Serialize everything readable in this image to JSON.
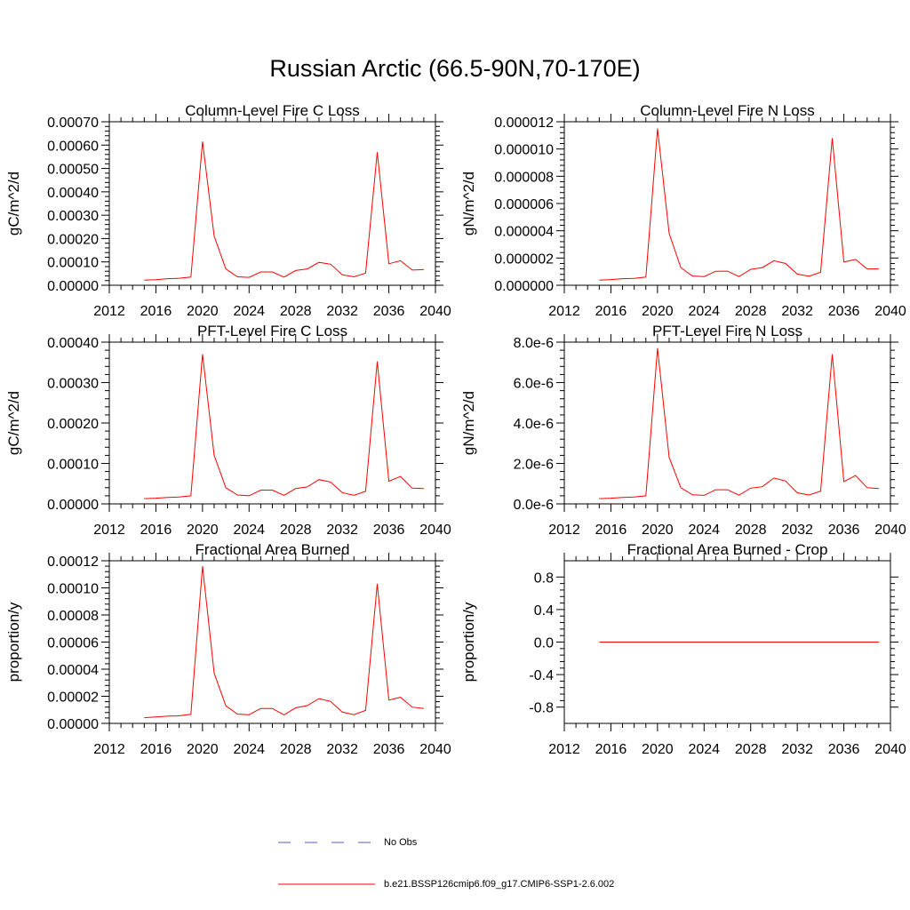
{
  "title": "Russian Arctic (66.5-90N,70-170E)",
  "colors": {
    "model": "#ff0000",
    "obs": "#4a5ad8",
    "axis": "#000000"
  },
  "legend": {
    "obs_label": "No Obs",
    "model_label": "b.e21.BSSP126cmip6.f09_g17.CMIP6-SSP1-2.6.002"
  },
  "chart_data": [
    {
      "type": "line",
      "title": "Column-Level Fire C Loss",
      "ylabel": "gC/m^2/d",
      "xlim": [
        2012,
        2040
      ],
      "xticks": [
        "2012",
        "2016",
        "2020",
        "2024",
        "2028",
        "2032",
        "2036",
        "2040"
      ],
      "ylim": [
        0,
        0.0007
      ],
      "yticks": [
        "0.00000",
        "0.00010",
        "0.00020",
        "0.00030",
        "0.00040",
        "0.00050",
        "0.00060",
        "0.00070"
      ],
      "x": [
        2015,
        2016,
        2017,
        2018,
        2019,
        2020,
        2021,
        2022,
        2023,
        2024,
        2025,
        2026,
        2027,
        2028,
        2029,
        2030,
        2031,
        2032,
        2033,
        2034,
        2035,
        2036,
        2037,
        2038,
        2039
      ],
      "series": [
        {
          "values": [
            2.2e-05,
            2.4e-05,
            2.8e-05,
            3e-05,
            3.5e-05,
            0.000615,
            0.00021,
            7e-05,
            3.6e-05,
            3.4e-05,
            5.7e-05,
            5.7e-05,
            3.5e-05,
            6.3e-05,
            7e-05,
            9.8e-05,
            9e-05,
            4.5e-05,
            3.6e-05,
            5.2e-05,
            0.00057,
            9.2e-05,
            0.000105,
            6.5e-05,
            6.7e-05
          ]
        }
      ]
    },
    {
      "type": "line",
      "title": "Column-Level Fire N Loss",
      "ylabel": "gN/m^2/d",
      "xlim": [
        2012,
        2040
      ],
      "xticks": [
        "2012",
        "2016",
        "2020",
        "2024",
        "2028",
        "2032",
        "2036",
        "2040"
      ],
      "ylim": [
        0,
        1.2e-05
      ],
      "yticks": [
        "0.000000",
        "0.000002",
        "0.000004",
        "0.000006",
        "0.000008",
        "0.000010",
        "0.000012"
      ],
      "x": [
        2015,
        2016,
        2017,
        2018,
        2019,
        2020,
        2021,
        2022,
        2023,
        2024,
        2025,
        2026,
        2027,
        2028,
        2029,
        2030,
        2031,
        2032,
        2033,
        2034,
        2035,
        2036,
        2037,
        2038,
        2039
      ],
      "series": [
        {
          "values": [
            3.8e-07,
            4.2e-07,
            4.8e-07,
            5e-07,
            6e-07,
            1.15e-05,
            3.8e-06,
            1.3e-06,
            6.8e-07,
            6.4e-07,
            1.03e-06,
            1.04e-06,
            6.4e-07,
            1.17e-06,
            1.3e-06,
            1.8e-06,
            1.6e-06,
            8.2e-07,
            6.6e-07,
            9.5e-07,
            1.08e-05,
            1.7e-06,
            1.9e-06,
            1.2e-06,
            1.2e-06
          ]
        }
      ]
    },
    {
      "type": "line",
      "title": "PFT-Level Fire C Loss",
      "ylabel": "gC/m^2/d",
      "xlim": [
        2012,
        2040
      ],
      "xticks": [
        "2012",
        "2016",
        "2020",
        "2024",
        "2028",
        "2032",
        "2036",
        "2040"
      ],
      "ylim": [
        0,
        0.0004
      ],
      "yticks": [
        "0.00000",
        "0.00010",
        "0.00020",
        "0.00030",
        "0.00040"
      ],
      "x": [
        2015,
        2016,
        2017,
        2018,
        2019,
        2020,
        2021,
        2022,
        2023,
        2024,
        2025,
        2026,
        2027,
        2028,
        2029,
        2030,
        2031,
        2032,
        2033,
        2034,
        2035,
        2036,
        2037,
        2038,
        2039
      ],
      "series": [
        {
          "values": [
            1.3e-05,
            1.4e-05,
            1.6e-05,
            1.7e-05,
            2e-05,
            0.00037,
            0.00012,
            4e-05,
            2.2e-05,
            2e-05,
            3.4e-05,
            3.4e-05,
            2.1e-05,
            3.8e-05,
            4.2e-05,
            6e-05,
            5.4e-05,
            2.8e-05,
            2.1e-05,
            3.1e-05,
            0.000352,
            5.6e-05,
            6.8e-05,
            3.9e-05,
            3.8e-05
          ]
        }
      ]
    },
    {
      "type": "line",
      "title": "PFT-Level Fire N Loss",
      "ylabel": "gN/m^2/d",
      "xlim": [
        2012,
        2040
      ],
      "xticks": [
        "2012",
        "2016",
        "2020",
        "2024",
        "2028",
        "2032",
        "2036",
        "2040"
      ],
      "ylim": [
        0,
        8e-06
      ],
      "yticks": [
        "0.0e-6",
        "2.0e-6",
        "4.0e-6",
        "6.0e-6",
        "8.0e-6"
      ],
      "x": [
        2015,
        2016,
        2017,
        2018,
        2019,
        2020,
        2021,
        2022,
        2023,
        2024,
        2025,
        2026,
        2027,
        2028,
        2029,
        2030,
        2031,
        2032,
        2033,
        2034,
        2035,
        2036,
        2037,
        2038,
        2039
      ],
      "series": [
        {
          "values": [
            2.6e-07,
            2.8e-07,
            3.2e-07,
            3.4e-07,
            4e-07,
            7.7e-06,
            2.3e-06,
            8e-07,
            4.5e-07,
            4.2e-07,
            7e-07,
            7e-07,
            4.3e-07,
            7.8e-07,
            8.5e-07,
            1.28e-06,
            1.13e-06,
            5.5e-07,
            4.4e-07,
            6.3e-07,
            7.4e-06,
            1.1e-06,
            1.4e-06,
            8e-07,
            7.6e-07
          ]
        }
      ]
    },
    {
      "type": "line",
      "title": "Fractional Area Burned",
      "ylabel": "proportion/y",
      "xlim": [
        2012,
        2040
      ],
      "xticks": [
        "2012",
        "2016",
        "2020",
        "2024",
        "2028",
        "2032",
        "2036",
        "2040"
      ],
      "ylim": [
        0,
        0.00012
      ],
      "yticks": [
        "0.00000",
        "0.00002",
        "0.00004",
        "0.00006",
        "0.00008",
        "0.00010",
        "0.00012"
      ],
      "x": [
        2015,
        2016,
        2017,
        2018,
        2019,
        2020,
        2021,
        2022,
        2023,
        2024,
        2025,
        2026,
        2027,
        2028,
        2029,
        2030,
        2031,
        2032,
        2033,
        2034,
        2035,
        2036,
        2037,
        2038,
        2039
      ],
      "series": [
        {
          "values": [
            4.2e-06,
            4.7e-06,
            5.3e-06,
            5.6e-06,
            6.7e-06,
            0.000116,
            3.7e-05,
            1.3e-05,
            6.8e-06,
            6.4e-06,
            1.1e-05,
            1.1e-05,
            6.3e-06,
            1.15e-05,
            1.31e-05,
            1.83e-05,
            1.62e-05,
            8.3e-06,
            6.4e-06,
            9.6e-06,
            0.000103,
            1.72e-05,
            1.93e-05,
            1.2e-05,
            1.1e-05
          ]
        }
      ]
    },
    {
      "type": "line",
      "title": "Fractional Area Burned - Crop",
      "ylabel": "proportion/y",
      "xlim": [
        2012,
        2040
      ],
      "xticks": [
        "2012",
        "2016",
        "2020",
        "2024",
        "2028",
        "2032",
        "2036",
        "2040"
      ],
      "ylim": [
        -1,
        1
      ],
      "ytick_values": [
        -0.8,
        -0.4,
        0,
        0.4,
        0.8
      ],
      "yticks": [
        "-0.8",
        "-0.4",
        "0.0",
        "0.4",
        "0.8"
      ],
      "x": [
        2015,
        2016,
        2017,
        2018,
        2019,
        2020,
        2021,
        2022,
        2023,
        2024,
        2025,
        2026,
        2027,
        2028,
        2029,
        2030,
        2031,
        2032,
        2033,
        2034,
        2035,
        2036,
        2037,
        2038,
        2039
      ],
      "series": [
        {
          "values": [
            0,
            0,
            0,
            0,
            0,
            0,
            0,
            0,
            0,
            0,
            0,
            0,
            0,
            0,
            0,
            0,
            0,
            0,
            0,
            0,
            0,
            0,
            0,
            0,
            0
          ]
        }
      ]
    }
  ]
}
